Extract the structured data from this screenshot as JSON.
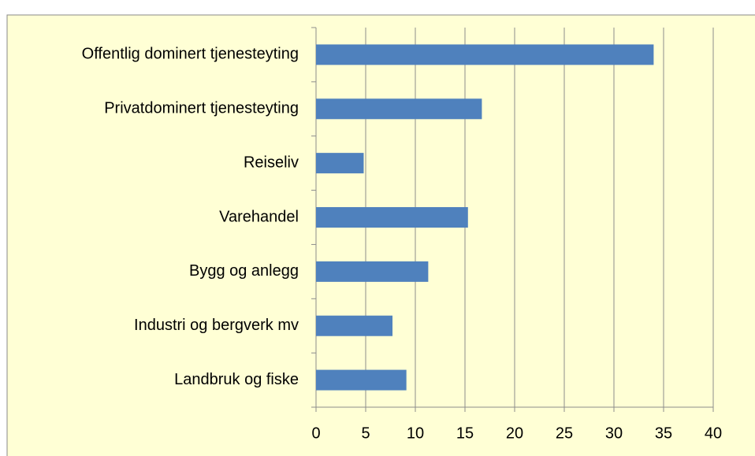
{
  "chart_data": {
    "type": "bar",
    "orientation": "horizontal",
    "categories": [
      "Offentlig dominert tjenesteyting",
      "Privatdominert tjenesteyting",
      "Reiseliv",
      "Varehandel",
      "Bygg og anlegg",
      "Industri og bergverk mv",
      "Landbruk og fiske"
    ],
    "values": [
      34,
      16.7,
      4.8,
      15.3,
      11.3,
      7.7,
      9.1
    ],
    "color": "#4f81bd",
    "xlim": [
      0,
      40
    ],
    "xticks": [
      0,
      5,
      10,
      15,
      20,
      25,
      30,
      35,
      40
    ],
    "grid": true
  }
}
